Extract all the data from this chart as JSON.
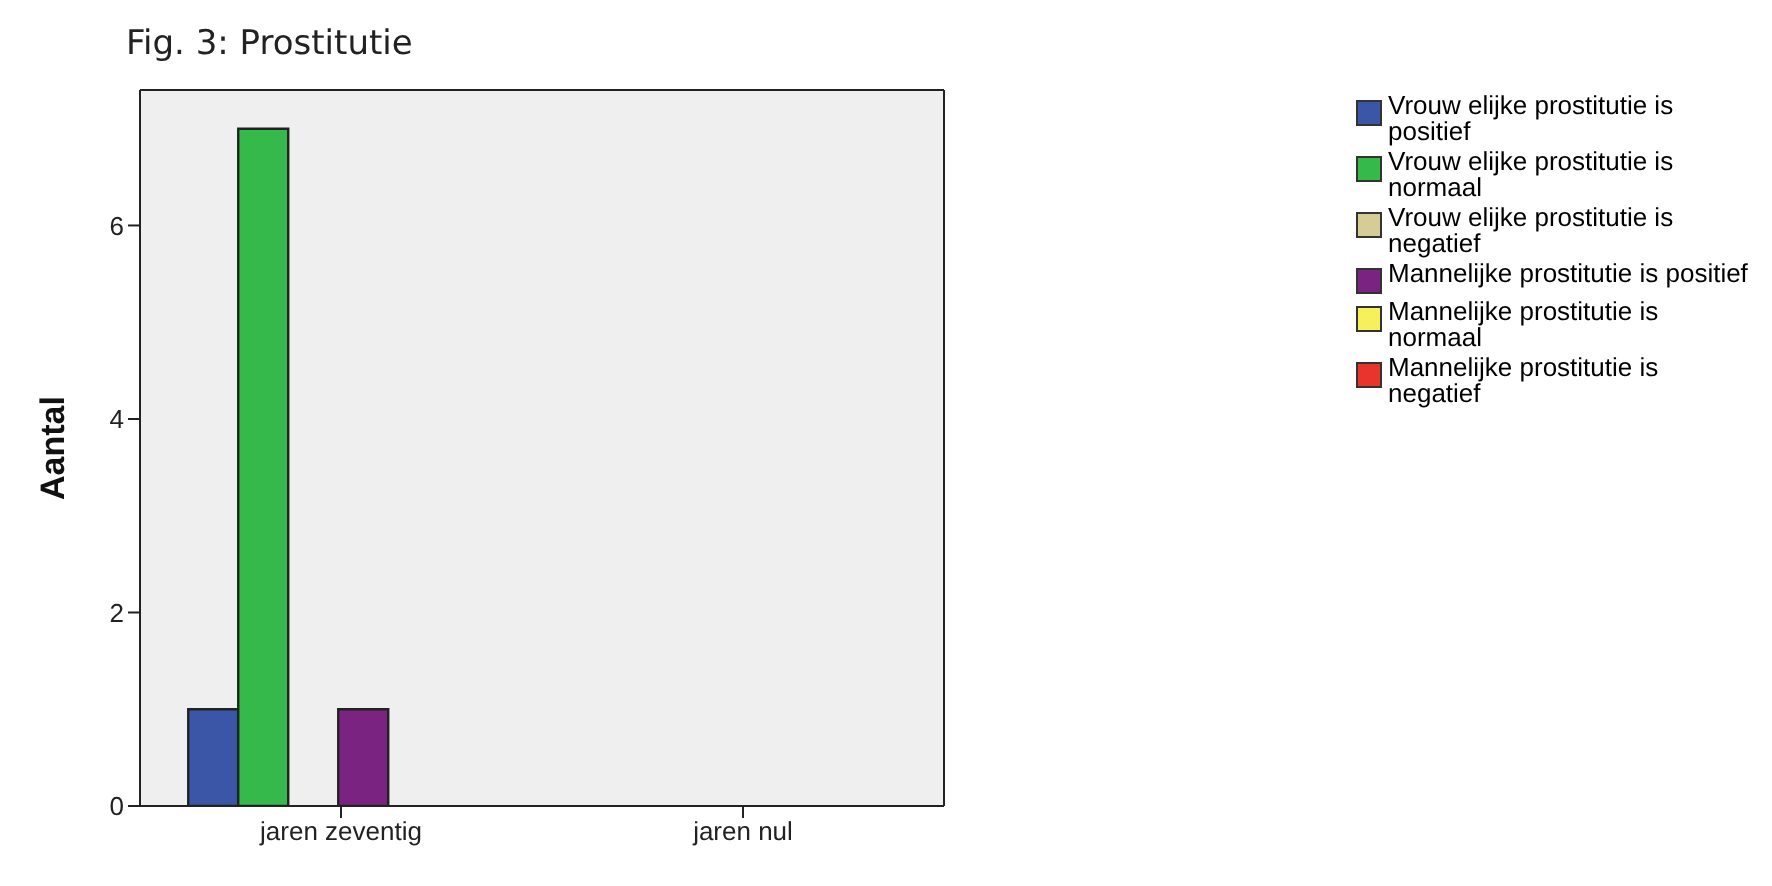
{
  "chart_data": {
    "type": "bar",
    "title": "Fig. 3: Prostitutie",
    "ylabel": "Aantal",
    "categories": [
      "jaren zeventig",
      "jaren nul"
    ],
    "series": [
      {
        "name": "Vrouw elijke prostitutie is positief",
        "color": "#3b56a6",
        "values": [
          1,
          0
        ]
      },
      {
        "name": "Vrouw elijke prostitutie is normaal",
        "color": "#34b94a",
        "values": [
          7,
          0
        ]
      },
      {
        "name": "Vrouw elijke prostitutie is negatief",
        "color": "#d6cc95",
        "values": [
          0,
          0
        ]
      },
      {
        "name": "Mannelijke prostitutie is positief",
        "color": "#7b2380",
        "values": [
          1,
          0
        ]
      },
      {
        "name": "Mannelijke prostitutie is normaal",
        "color": "#f6f05a",
        "values": [
          0,
          0
        ]
      },
      {
        "name": "Mannelijke prostitutie is negatief",
        "color": "#e8342c",
        "values": [
          0,
          0
        ]
      }
    ],
    "ylim": [
      0,
      7.4
    ],
    "yticks": [
      0,
      2,
      4,
      6
    ],
    "grid": false,
    "legend": "top right"
  }
}
